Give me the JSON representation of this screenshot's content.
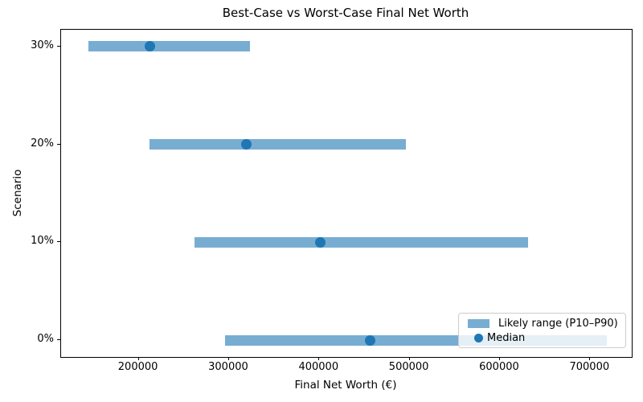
{
  "chart_data": {
    "type": "bar",
    "orientation": "horizontal",
    "title": "Best-Case vs Worst-Case Final Net Worth",
    "xlabel": "Final Net Worth (€)",
    "ylabel": "Scenario",
    "categories": [
      "0%",
      "10%",
      "20%",
      "30%"
    ],
    "series": [
      {
        "name": "P10",
        "values": [
          296000,
          262000,
          212000,
          144000
        ]
      },
      {
        "name": "Median",
        "values": [
          456000,
          401000,
          319000,
          212000
        ]
      },
      {
        "name": "P90",
        "values": [
          718000,
          631000,
          496000,
          323000
        ]
      }
    ],
    "legend": {
      "range_label": "Likely range (P10–P90)",
      "median_label": "Median",
      "position": "lower right"
    },
    "xlim": [
      114000,
      746000
    ],
    "ylim": [
      -0.17,
      3.17
    ],
    "xticks": [
      200000,
      300000,
      400000,
      500000,
      600000,
      700000
    ],
    "grid": false,
    "colors": {
      "bar": "#78ADD2",
      "median_dot": "#1F77B4",
      "spine": "#000000",
      "legend_border": "#CCCCCC"
    }
  }
}
